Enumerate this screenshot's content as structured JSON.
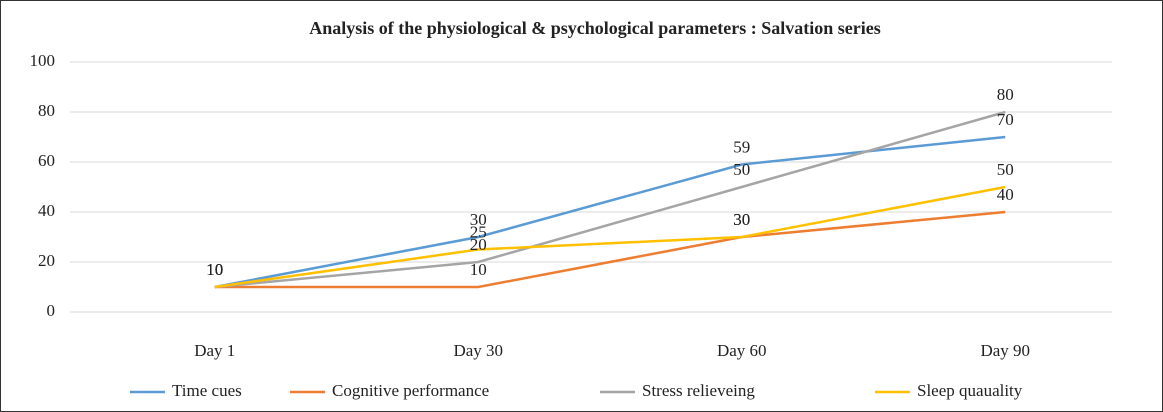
{
  "chart_data": {
    "type": "line",
    "title": "Analysis of the physiological & psychological parameters : Salvation series",
    "categories": [
      "Day 1",
      "Day 30",
      "Day 60",
      "Day 90"
    ],
    "series": [
      {
        "name": "Time cues",
        "color": "#5b9bd5",
        "values": [
          10,
          30,
          59,
          70
        ]
      },
      {
        "name": "Cognitive performance",
        "color": "#ed7d31",
        "values": [
          10,
          10,
          30,
          40
        ]
      },
      {
        "name": "Stress relieveing",
        "color": "#a5a5a5",
        "values": [
          10,
          20,
          50,
          80
        ]
      },
      {
        "name": "Sleep quauality",
        "color": "#ffc000",
        "values": [
          10,
          25,
          30,
          50
        ]
      }
    ],
    "ylim": [
      0,
      100
    ],
    "yticks": [
      0,
      20,
      40,
      60,
      80,
      100
    ],
    "grid": true,
    "legend": "bottom"
  }
}
